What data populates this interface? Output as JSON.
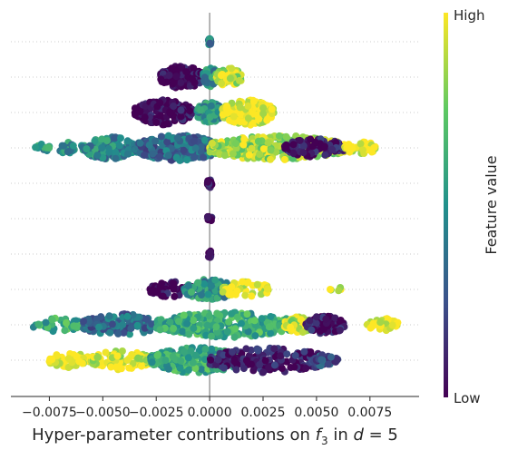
{
  "chart_data": {
    "type": "scatter",
    "subtype": "beeswarm",
    "xlabel": "Hyper-parameter contributions on f₃ in d = 5",
    "xlabel_parts": {
      "pre": "Hyper-parameter contributions on ",
      "var": "f",
      "sub": "3",
      "mid": " in ",
      "d": "d",
      "eq": " = 5"
    },
    "xlim": [
      -0.0093,
      0.0098
    ],
    "xticks": [
      -0.0075,
      -0.005,
      -0.0025,
      0.0,
      0.0025,
      0.005,
      0.0075
    ],
    "xtick_labels": [
      "−0.0075",
      "−0.0050",
      "−0.0025",
      "0.0000",
      "0.0025",
      "0.0050",
      "0.0075"
    ],
    "grid": "horizontal dotted row guides",
    "zero_line": true,
    "colorbar": {
      "label": "Feature value",
      "high_label": "High",
      "low_label": "Low",
      "colors": [
        "#fde725",
        "#5ec962",
        "#21918c",
        "#3b528b",
        "#440154"
      ]
    },
    "colors": {
      "high": "#fde725",
      "mid_high": "#5ec962",
      "mid": "#21918c",
      "mid_low": "#3b528b",
      "low": "#440154"
    },
    "rows": [
      {
        "clusters": [
          {
            "range": [
              -5e-05,
              5e-05
            ],
            "value": 0.45,
            "density": 25
          }
        ]
      },
      {
        "clusters": [
          {
            "range": [
              -0.0023,
              -0.0003
            ],
            "value": 0.0,
            "density": 140
          },
          {
            "range": [
              -0.0003,
              0.0004
            ],
            "value": 0.5,
            "density": 90
          },
          {
            "range": [
              0.0003,
              0.0015
            ],
            "value": 0.9,
            "density": 80
          }
        ]
      },
      {
        "clusters": [
          {
            "range": [
              -0.0035,
              -0.0008
            ],
            "value": 0.0,
            "density": 170
          },
          {
            "range": [
              -0.0006,
              0.0006
            ],
            "value": 0.5,
            "density": 110
          },
          {
            "range": [
              0.0006,
              0.003
            ],
            "value": 1.0,
            "density": 180
          }
        ]
      },
      {
        "clusters": [
          {
            "range": [
              -0.0082,
              -0.0075
            ],
            "value": 0.5,
            "density": 14
          },
          {
            "range": [
              -0.0071,
              -0.0063
            ],
            "value": 0.5,
            "density": 22
          },
          {
            "range": [
              -0.006,
              -0.0035
            ],
            "value": 0.45,
            "density": 140
          },
          {
            "range": [
              -0.0035,
              0.0005
            ],
            "value": 0.35,
            "density": 330
          },
          {
            "range": [
              0.0,
              0.0063
            ],
            "value": 0.85,
            "density": 320
          },
          {
            "range": [
              0.0035,
              0.0063
            ],
            "value": 0.05,
            "density": 90
          },
          {
            "range": [
              0.0063,
              0.0078
            ],
            "value": 1.0,
            "density": 40
          }
        ]
      },
      {
        "clusters": [
          {
            "range": [
              -0.0001,
              0.0001
            ],
            "value": 0.0,
            "density": 20
          }
        ]
      },
      {
        "clusters": [
          {
            "range": [
              -0.0001,
              0.0001
            ],
            "value": 0.0,
            "density": 10
          }
        ]
      },
      {
        "clusters": [
          {
            "range": [
              -5e-05,
              5e-05
            ],
            "value": 0.0,
            "density": 20
          }
        ]
      },
      {
        "clusters": [
          {
            "range": [
              -0.0028,
              -0.0008
            ],
            "value": 0.0,
            "density": 55
          },
          {
            "range": [
              -0.0012,
              0.0012
            ],
            "value": 0.5,
            "density": 110
          },
          {
            "range": [
              0.0006,
              0.0028
            ],
            "value": 1.0,
            "density": 55
          },
          {
            "range": [
              0.0055,
              0.0062
            ],
            "value": 1.0,
            "density": 5
          }
        ]
      },
      {
        "clusters": [
          {
            "range": [
              -0.0083,
              -0.006
            ],
            "value": 0.6,
            "density": 40
          },
          {
            "range": [
              -0.006,
              -0.0025
            ],
            "value": 0.35,
            "density": 130
          },
          {
            "range": [
              -0.0025,
              0.004
            ],
            "value": 0.6,
            "density": 300
          },
          {
            "range": [
              0.0035,
              0.0048
            ],
            "value": 0.9,
            "density": 60
          },
          {
            "range": [
              0.0045,
              0.0063
            ],
            "value": 0.05,
            "density": 80
          },
          {
            "range": [
              0.0073,
              0.0088
            ],
            "value": 1.0,
            "density": 35
          }
        ]
      },
      {
        "clusters": [
          {
            "range": [
              -0.0075,
              -0.0055
            ],
            "value": 1.0,
            "density": 50
          },
          {
            "range": [
              -0.0055,
              -0.0028
            ],
            "value": 0.95,
            "density": 90
          },
          {
            "range": [
              -0.0028,
              0.0015
            ],
            "value": 0.6,
            "density": 260
          },
          {
            "range": [
              0.0,
              0.0055
            ],
            "value": 0.05,
            "density": 200
          },
          {
            "range": [
              0.0048,
              0.006
            ],
            "value": 0.25,
            "density": 35
          }
        ]
      }
    ]
  }
}
